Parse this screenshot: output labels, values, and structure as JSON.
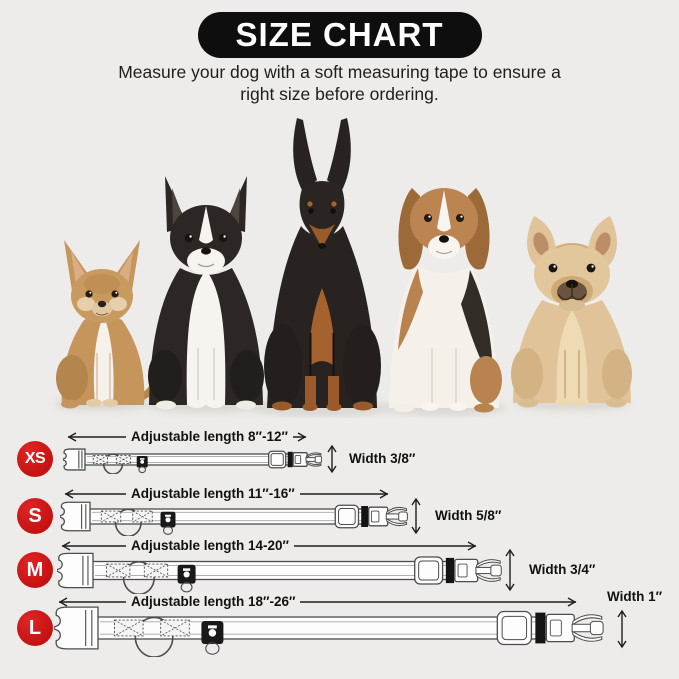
{
  "header": {
    "title": "SIZE CHART",
    "subtitle_line1": "Measure your dog with a soft measuring tape to ensure a",
    "subtitle_line2": "right size before ordering."
  },
  "dogs": [
    {
      "breed": "chihuahua"
    },
    {
      "breed": "boston-terrier"
    },
    {
      "breed": "doberman"
    },
    {
      "breed": "beagle"
    },
    {
      "breed": "french-bulldog"
    }
  ],
  "size_rows": [
    {
      "size": "XS",
      "length_label": "Adjustable length 8″-12″",
      "width_label": "Width 3/8″"
    },
    {
      "size": "S",
      "length_label": "Adjustable length 11″-16″",
      "width_label": "Width 5/8″"
    },
    {
      "size": "M",
      "length_label": "Adjustable length 14-20″",
      "width_label": "Width 3/4″"
    },
    {
      "size": "L",
      "length_label": "Adjustable length 18″-26″",
      "width_label": "Width 1″"
    }
  ],
  "colors": {
    "background": "#edecea",
    "badge_red": "#d01818",
    "title_pill": "#0e0e0e",
    "title_text": "#ffffff",
    "outline_gray": "#4c4c4c"
  }
}
